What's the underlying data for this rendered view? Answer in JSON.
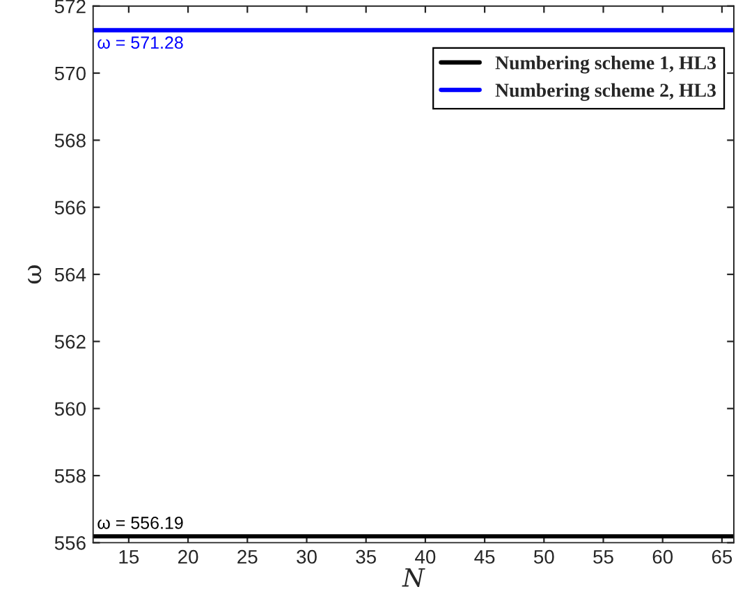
{
  "chart_data": {
    "type": "line",
    "xlabel": "N",
    "ylabel": "ω",
    "xlim": [
      12,
      66
    ],
    "xticks": [
      15,
      20,
      25,
      30,
      35,
      40,
      45,
      50,
      55,
      60,
      65
    ],
    "ylim": [
      556,
      572
    ],
    "yticks": [
      556,
      558,
      560,
      562,
      564,
      566,
      568,
      570,
      572
    ],
    "x": [
      12,
      66
    ],
    "series": [
      {
        "name": "Numbering scheme 1, HL3",
        "color": "#000000",
        "values": [
          556.19,
          556.19
        ]
      },
      {
        "name": "Numbering scheme 2, HL3",
        "color": "#0000ff",
        "values": [
          571.28,
          571.28
        ]
      }
    ],
    "annotations": [
      {
        "text": "ω = 556.19",
        "x": 12,
        "y": 556.19
      },
      {
        "text": "ω = 571.28",
        "x": 12,
        "y": 571.28
      }
    ],
    "legend": "top right",
    "grid": false,
    "marker": "none",
    "line_style": "solid"
  }
}
